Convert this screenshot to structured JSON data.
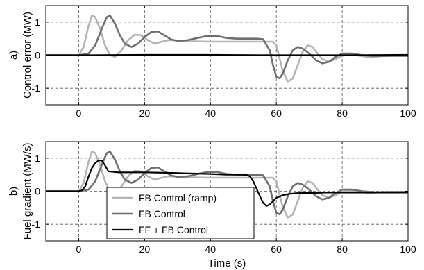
{
  "chart_data": [
    {
      "type": "line",
      "panel_label": "a)",
      "ylabel": "Control error (MW)",
      "xlabel": "",
      "xlim": [
        -10,
        100
      ],
      "ylim": [
        -1.5,
        1.5
      ],
      "xticks": [
        0,
        20,
        40,
        60,
        80,
        100
      ],
      "yticks": [
        -1,
        0,
        1
      ],
      "grid": true,
      "series": [
        {
          "name": "FB Control (ramp)",
          "color": "#b4b4b4",
          "x": [
            -10,
            0,
            1.5,
            3,
            4,
            5,
            6.5,
            8,
            9.5,
            11,
            13,
            15,
            17,
            19,
            21,
            23,
            25,
            27,
            29,
            31,
            35,
            40,
            45,
            50,
            55,
            58,
            59,
            60,
            61,
            62,
            63.5,
            65,
            66.5,
            68,
            69.5,
            71,
            72.5,
            74,
            76,
            78,
            80,
            82,
            84,
            86,
            88,
            90,
            93,
            96,
            100
          ],
          "y": [
            0,
            0,
            0.25,
            0.9,
            1.2,
            1.15,
            0.8,
            0.3,
            0.0,
            -0.05,
            0.15,
            0.45,
            0.62,
            0.6,
            0.45,
            0.35,
            0.4,
            0.45,
            0.45,
            0.43,
            0.42,
            0.41,
            0.41,
            0.41,
            0.41,
            0.41,
            0.41,
            0.3,
            -0.1,
            -0.5,
            -0.8,
            -0.7,
            -0.3,
            0.1,
            0.3,
            0.25,
            0.05,
            -0.12,
            -0.2,
            -0.12,
            -0.02,
            0.02,
            0.0,
            -0.03,
            -0.05,
            -0.04,
            -0.02,
            -0.02,
            -0.02
          ]
        },
        {
          "name": "FB Control",
          "color": "#6e6e6e",
          "x": [
            -10,
            0,
            3,
            5,
            7,
            8.5,
            9.5,
            11,
            12.5,
            14,
            16,
            18,
            20,
            22,
            24,
            26,
            28,
            30,
            33,
            36,
            39,
            42,
            45,
            48,
            51,
            54,
            56,
            58,
            59,
            60,
            61,
            62,
            63.5,
            65,
            66.5,
            68,
            70,
            72,
            74,
            76,
            78,
            80,
            83,
            86,
            90,
            95,
            100
          ],
          "y": [
            0,
            0,
            0.05,
            0.3,
            0.8,
            1.15,
            1.2,
            0.95,
            0.6,
            0.35,
            0.25,
            0.35,
            0.55,
            0.7,
            0.72,
            0.6,
            0.48,
            0.43,
            0.45,
            0.52,
            0.58,
            0.58,
            0.52,
            0.5,
            0.5,
            0.5,
            0.48,
            0.15,
            -0.3,
            -0.65,
            -0.7,
            -0.55,
            -0.15,
            0.15,
            0.25,
            0.2,
            0.05,
            -0.15,
            -0.25,
            -0.2,
            -0.05,
            0.05,
            0.05,
            0.0,
            -0.03,
            -0.02,
            -0.02
          ]
        },
        {
          "name": "FF + FB Control",
          "color": "#000000",
          "x": [
            -10,
            0,
            20,
            40,
            60,
            80,
            100
          ],
          "y": [
            0,
            0,
            0.01,
            0.01,
            0.0,
            0.0,
            0.01
          ]
        }
      ]
    },
    {
      "type": "line",
      "panel_label": "b)",
      "ylabel": "Fuel gradient (MW/s)",
      "xlabel": "Time (s)",
      "xlim": [
        -10,
        100
      ],
      "ylim": [
        -1.5,
        1.5
      ],
      "xticks": [
        0,
        20,
        40,
        60,
        80,
        100
      ],
      "yticks": [
        -1,
        0,
        1
      ],
      "grid": true,
      "legend": {
        "position": "bottom-left",
        "entries": [
          "FB Control (ramp)",
          "FB Control",
          "FF + FB Control"
        ]
      },
      "series": [
        {
          "name": "FB Control (ramp)",
          "color": "#b4b4b4",
          "x": [
            -10,
            0,
            1.5,
            3,
            4,
            5,
            6.5,
            8,
            9.5,
            11,
            13,
            15,
            17,
            19,
            21,
            23,
            25,
            27,
            29,
            31,
            35,
            40,
            45,
            50,
            55,
            58,
            59,
            60,
            61,
            62,
            63.5,
            65,
            66.5,
            68,
            69.5,
            71,
            72.5,
            74,
            76,
            78,
            80,
            82,
            84,
            86,
            88,
            90,
            93,
            96,
            100
          ],
          "y": [
            0,
            0,
            0.25,
            0.9,
            1.2,
            1.15,
            0.8,
            0.3,
            0.0,
            -0.05,
            0.15,
            0.45,
            0.62,
            0.6,
            0.45,
            0.35,
            0.4,
            0.45,
            0.45,
            0.43,
            0.42,
            0.41,
            0.41,
            0.41,
            0.41,
            0.41,
            0.41,
            0.3,
            -0.1,
            -0.5,
            -0.8,
            -0.7,
            -0.3,
            0.1,
            0.3,
            0.25,
            0.05,
            -0.12,
            -0.2,
            -0.12,
            -0.02,
            0.02,
            0.0,
            -0.03,
            -0.05,
            -0.04,
            -0.02,
            -0.02,
            -0.02
          ]
        },
        {
          "name": "FB Control",
          "color": "#6e6e6e",
          "x": [
            -10,
            0,
            3,
            5,
            7,
            8.5,
            9.5,
            11,
            12.5,
            14,
            16,
            18,
            20,
            22,
            24,
            26,
            28,
            30,
            33,
            36,
            39,
            42,
            45,
            48,
            51,
            54,
            56,
            58,
            59,
            60,
            61,
            62,
            63.5,
            65,
            66.5,
            68,
            70,
            72,
            74,
            76,
            78,
            80,
            83,
            86,
            90,
            95,
            100
          ],
          "y": [
            0,
            0,
            0.05,
            0.3,
            0.8,
            1.15,
            1.2,
            0.95,
            0.6,
            0.35,
            0.25,
            0.35,
            0.55,
            0.7,
            0.72,
            0.6,
            0.48,
            0.43,
            0.45,
            0.52,
            0.58,
            0.58,
            0.52,
            0.5,
            0.5,
            0.5,
            0.48,
            0.15,
            -0.3,
            -0.65,
            -0.7,
            -0.55,
            -0.15,
            0.15,
            0.25,
            0.2,
            0.05,
            -0.15,
            -0.25,
            -0.2,
            -0.05,
            0.05,
            0.05,
            0.0,
            -0.03,
            -0.02,
            -0.02
          ]
        },
        {
          "name": "FF + FB Control",
          "color": "#000000",
          "x": [
            -10,
            0,
            1,
            2,
            3,
            4,
            5,
            6,
            7,
            8,
            9,
            12,
            20,
            30,
            40,
            45,
            50,
            51,
            52,
            53,
            55,
            56,
            57,
            58,
            59,
            60,
            62,
            64,
            66,
            68,
            70,
            72,
            75,
            80,
            85,
            90,
            95,
            100
          ],
          "y": [
            0,
            0,
            0.03,
            0.15,
            0.45,
            0.7,
            0.85,
            0.93,
            0.93,
            0.78,
            0.6,
            0.57,
            0.57,
            0.55,
            0.52,
            0.5,
            0.5,
            0.49,
            0.45,
            0.3,
            -0.15,
            -0.35,
            -0.45,
            -0.4,
            -0.3,
            -0.2,
            -0.12,
            -0.08,
            -0.06,
            -0.05,
            -0.05,
            -0.05,
            -0.04,
            -0.04,
            -0.04,
            -0.04,
            -0.04,
            -0.04
          ]
        }
      ]
    }
  ]
}
